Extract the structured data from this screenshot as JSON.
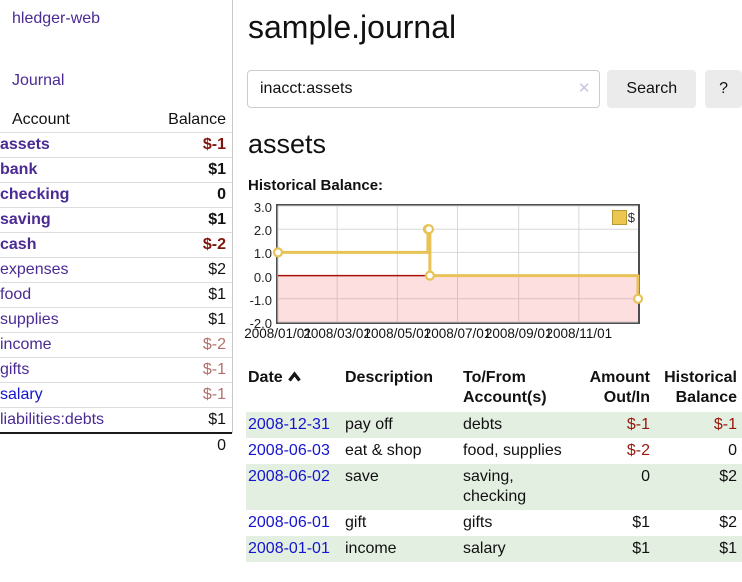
{
  "app": {
    "title": "hledger-web"
  },
  "sidebar": {
    "nav": {
      "journal_label": "Journal"
    },
    "accounts_table": {
      "headers": {
        "account": "Account",
        "balance": "Balance"
      },
      "rows": [
        {
          "name": "assets",
          "balance": "$-1"
        },
        {
          "name": "bank",
          "balance": "$1"
        },
        {
          "name": "checking",
          "balance": "0"
        },
        {
          "name": "saving",
          "balance": "$1"
        },
        {
          "name": "cash",
          "balance": "$-2"
        },
        {
          "name": "expenses",
          "balance": "$2"
        },
        {
          "name": "food",
          "balance": "$1"
        },
        {
          "name": "supplies",
          "balance": "$1"
        },
        {
          "name": "income",
          "balance": "$-2"
        },
        {
          "name": "gifts",
          "balance": "$-1"
        },
        {
          "name": "salary",
          "balance": "$-1"
        },
        {
          "name": "liabilities:debts",
          "balance": "$1"
        }
      ],
      "total": "0"
    }
  },
  "header": {
    "title": "sample.journal"
  },
  "search": {
    "value": "inacct:assets",
    "clear_icon": "✕",
    "button_label": "Search",
    "help_label": "?"
  },
  "register": {
    "heading": "assets",
    "table": {
      "headers": {
        "date": "Date",
        "description": "Description",
        "accounts": "To/From Account(s)",
        "amount": "Amount Out/In",
        "balance": "Historical Balance"
      },
      "rows": [
        {
          "date": "2008-12-31",
          "description": "pay off",
          "accounts": "debts",
          "amount": "$-1",
          "balance": "$-1"
        },
        {
          "date": "2008-06-03",
          "description": "eat & shop",
          "accounts": "food, supplies",
          "amount": "$-2",
          "balance": "0"
        },
        {
          "date": "2008-06-02",
          "description": "save",
          "accounts": "saving, checking",
          "amount": "0",
          "balance": "$2"
        },
        {
          "date": "2008-06-01",
          "description": "gift",
          "accounts": "gifts",
          "amount": "$1",
          "balance": "$2"
        },
        {
          "date": "2008-01-01",
          "description": "income",
          "accounts": "salary",
          "amount": "$1",
          "balance": "$1"
        }
      ]
    }
  },
  "chart_data": {
    "type": "line",
    "step": true,
    "title": "Historical Balance:",
    "series": [
      {
        "name": "$",
        "points": [
          [
            "2008-01-01",
            1
          ],
          [
            "2008-06-01",
            2
          ],
          [
            "2008-06-02",
            2
          ],
          [
            "2008-06-03",
            0
          ],
          [
            "2008-12-31",
            -1
          ]
        ]
      }
    ],
    "x_domain": [
      "2008-01-01",
      "2008-12-31"
    ],
    "ylim": [
      -2,
      3
    ],
    "x_ticks": [
      "2008/01/01",
      "2008/03/01",
      "2008/05/01",
      "2008/07/01",
      "2008/09/01",
      "2008/11/01"
    ],
    "y_ticks": [
      "3.0",
      "2.0",
      "1.0",
      "0.0",
      "-1.0",
      "-2.0"
    ],
    "legend_position": "top-right",
    "grid": true,
    "grid_color": "#d7d7d7",
    "line_color": "#e8c256",
    "marker_fill": "#ffffff",
    "zero_line_color": "#a41309",
    "negative_fill": "rgba(246,110,110,0.22)",
    "plot_border_color": "#4d4d4d"
  },
  "colors": {
    "link_purple": "#4b2b93",
    "link_blue": "#1414cf",
    "negative_strong": "#7e150d",
    "negative_soft": "#b3706b",
    "negative_table": "#96190b",
    "row_green": "#e3efe1",
    "button_gray": "#ebebeb"
  }
}
